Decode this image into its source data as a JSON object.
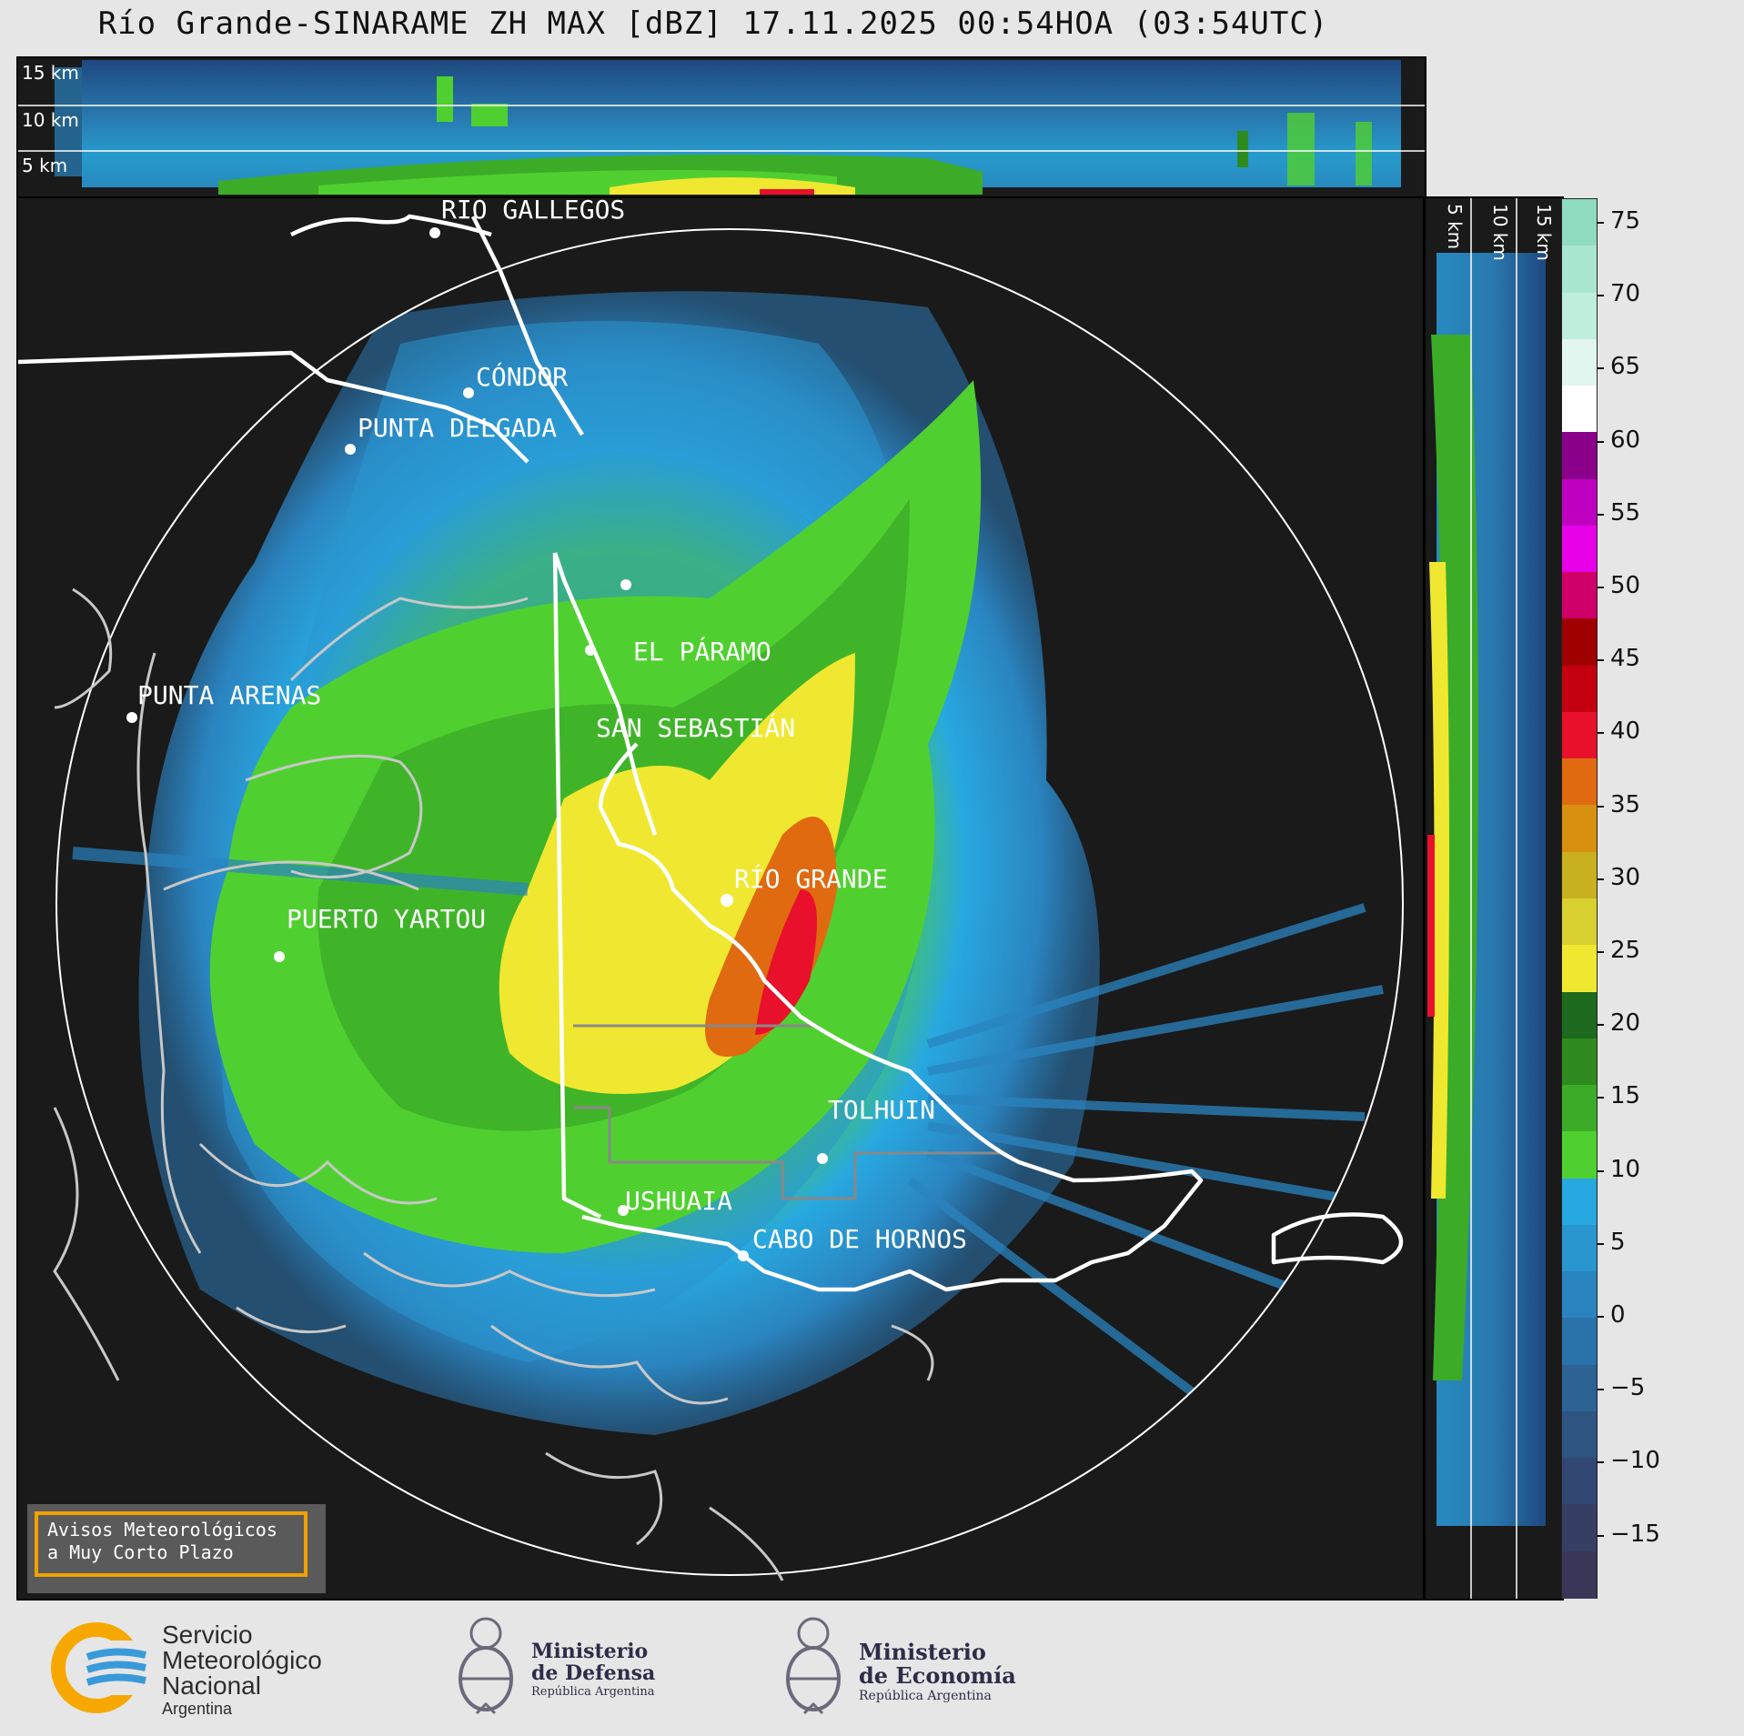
{
  "title": "Río Grande-SINARAME ZH MAX [dBZ] 17.11.2025 00:54HOA (03:54UTC)",
  "top_panel": {
    "height_labels": [
      "15 km",
      "10 km",
      "5 km"
    ]
  },
  "side_panel": {
    "height_labels": [
      "5 km",
      "10 km",
      "15 km"
    ]
  },
  "colorbar": {
    "ticks": [
      "75",
      "70",
      "65",
      "60",
      "55",
      "50",
      "45",
      "40",
      "35",
      "30",
      "25",
      "20",
      "15",
      "10",
      "5",
      "0",
      "−5",
      "−10",
      "−15"
    ],
    "colors": [
      "#8fdcc0",
      "#a8e6cf",
      "#c0eedc",
      "#e0f6ee",
      "#ffffff",
      "#8b008b",
      "#c000c0",
      "#e800e8",
      "#d0006a",
      "#a00000",
      "#c40010",
      "#e8102a",
      "#e06a10",
      "#d89010",
      "#c8b020",
      "#d8d030",
      "#f0e830",
      "#1e6a1e",
      "#2e8a1e",
      "#3cac28",
      "#50d030",
      "#28a8e0",
      "#2a96d0",
      "#2a84c0",
      "#2a72aa",
      "#2c6294",
      "#2e5482",
      "#324872",
      "#363e64",
      "#3a3658"
    ]
  },
  "cities": [
    {
      "name": "RÍO GALLEGOS"
    },
    {
      "name": "CÓNDOR"
    },
    {
      "name": "PUNTA DELGADA"
    },
    {
      "name": "PUNTA ARENAS"
    },
    {
      "name": "EL PÁRAMO"
    },
    {
      "name": "SAN SEBASTIÁN"
    },
    {
      "name": "RÍO GRANDE"
    },
    {
      "name": "PUERTO YARTOU"
    },
    {
      "name": "TOLHUIN"
    },
    {
      "name": "USHUAIA"
    },
    {
      "name": "CABO DE HORNOS"
    }
  ],
  "notice": {
    "line1": "Avisos Meteorológicos",
    "line2": "a Muy Corto Plazo"
  },
  "footer": {
    "smn": [
      "Servicio",
      "Meteorológico",
      "Nacional",
      "Argentina"
    ],
    "defensa": [
      "Ministerio",
      "de Defensa",
      "República Argentina"
    ],
    "economia": [
      "Ministerio",
      "de Economía",
      "República Argentina"
    ]
  }
}
